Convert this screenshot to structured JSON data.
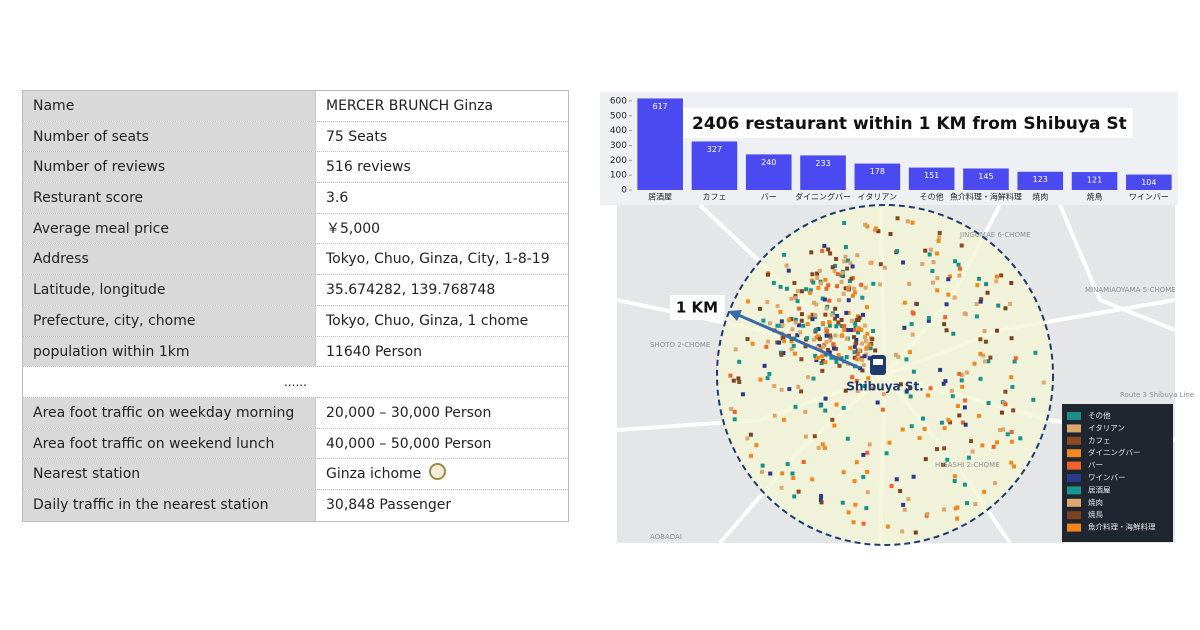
{
  "table": {
    "rows_top": [
      [
        "Name",
        "MERCER BRUNCH Ginza"
      ],
      [
        "Number of seats",
        "75 Seats"
      ],
      [
        "Number of reviews",
        "516 reviews"
      ],
      [
        "Resturant score",
        "3.6"
      ],
      [
        "Average meal price",
        "￥5,000"
      ],
      [
        "Address",
        "Tokyo, Chuo, Ginza, City, 1-8-19"
      ],
      [
        "Latitude, longitude",
        "35.674282, 139.768748"
      ],
      [
        "Prefecture, city, chome",
        "Tokyo, Chuo, Ginza, 1 chome"
      ],
      [
        "population within 1km",
        "11640 Person"
      ]
    ],
    "ellipsis": "......",
    "rows_bottom": [
      [
        "Area foot traffic on weekday morning",
        "20,000 – 30,000 Person"
      ],
      [
        "Area foot traffic on weekend lunch",
        "40,000 – 50,000 Person"
      ],
      [
        "Nearest station",
        "Ginza ichome"
      ],
      [
        "Daily traffic in the nearest station",
        "30,848 Passenger"
      ]
    ]
  },
  "chart_data": {
    "type": "bar",
    "title": "2406 restaurant within 1 KM from Shibuya St",
    "categories": [
      "居酒屋",
      "カフェ",
      "バー",
      "ダイニングバー",
      "イタリアン",
      "その他",
      "魚介料理・海鮮料理",
      "焼肉",
      "焼鳥",
      "ワインバー"
    ],
    "values": [
      617,
      327,
      240,
      233,
      178,
      151,
      145,
      123,
      121,
      104
    ],
    "color": "#4a4af0",
    "ylim": [
      0,
      620
    ],
    "yticks": [
      0,
      100,
      200,
      300,
      400,
      500,
      600
    ]
  },
  "map": {
    "radius_label": "1 KM",
    "station": "Shibuya St.",
    "place_labels": [
      "SHOTO 2-CHOME",
      "HIGASHI 2-CHOME",
      "MINAMIAOYAMA 5-CHOME",
      "JINGUMAE 6-CHOME",
      "AOBADAI",
      "Route 3 Shibuya Line"
    ],
    "legend": [
      {
        "name": "その他",
        "color": "#1a8f8a"
      },
      {
        "name": "イタリアン",
        "color": "#d9a56a"
      },
      {
        "name": "カフェ",
        "color": "#8a4a22"
      },
      {
        "name": "ダイニングバー",
        "color": "#f08a1c"
      },
      {
        "name": "バー",
        "color": "#f0622a"
      },
      {
        "name": "ワインバー",
        "color": "#2a3a8a"
      },
      {
        "name": "居酒屋",
        "color": "#17958f"
      },
      {
        "name": "焼肉",
        "color": "#e0a870"
      },
      {
        "name": "焼鳥",
        "color": "#7a4222"
      },
      {
        "name": "魚介料理・海鮮料理",
        "color": "#f2861a"
      }
    ]
  }
}
